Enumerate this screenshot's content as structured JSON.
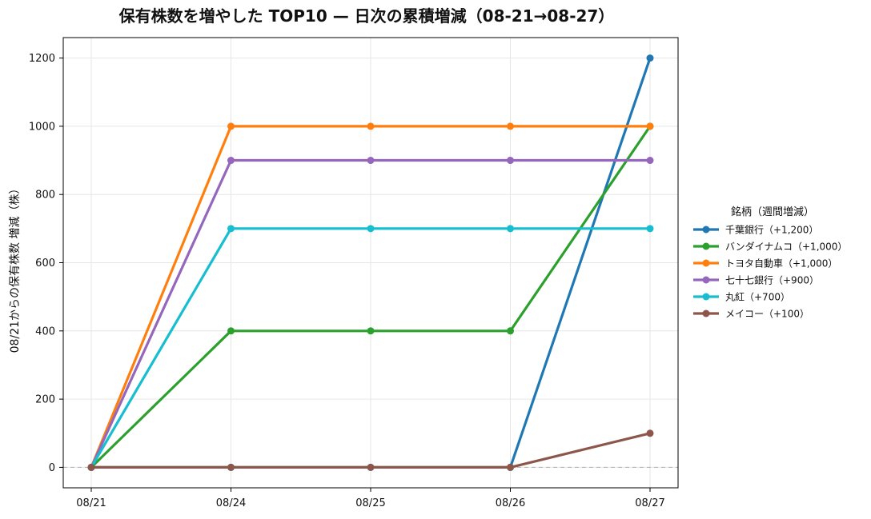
{
  "chart_data": {
    "type": "line",
    "title": "保有株数を増やした TOP10 — 日次の累積増減（08-21→08-27）",
    "xlabel": "",
    "ylabel": "08/21からの保有株数 増減（株）",
    "categories": [
      "08/21",
      "08/24",
      "08/25",
      "08/26",
      "08/27"
    ],
    "ylim": [
      -60,
      1260
    ],
    "yticks": [
      0,
      200,
      400,
      600,
      800,
      1000,
      1200
    ],
    "grid": true,
    "zero_line": true,
    "legend_placement": "right",
    "legend_title": "銘柄（週間増減）",
    "series": [
      {
        "name": "千葉銀行（+1,200）",
        "color": "#1f77b4",
        "values": [
          0,
          0,
          0,
          0,
          1200
        ]
      },
      {
        "name": "バンダイナムコ（+1,000）",
        "color": "#2ca02c",
        "values": [
          0,
          400,
          400,
          400,
          1000
        ]
      },
      {
        "name": "トヨタ自動車（+1,000）",
        "color": "#ff7f0e",
        "values": [
          0,
          1000,
          1000,
          1000,
          1000
        ]
      },
      {
        "name": "七十七銀行（+900）",
        "color": "#9467bd",
        "values": [
          0,
          900,
          900,
          900,
          900
        ]
      },
      {
        "name": "丸紅（+700）",
        "color": "#17becf",
        "values": [
          0,
          700,
          700,
          700,
          700
        ]
      },
      {
        "name": "メイコー（+100）",
        "color": "#8c564b",
        "values": [
          0,
          0,
          0,
          0,
          100
        ]
      }
    ]
  }
}
